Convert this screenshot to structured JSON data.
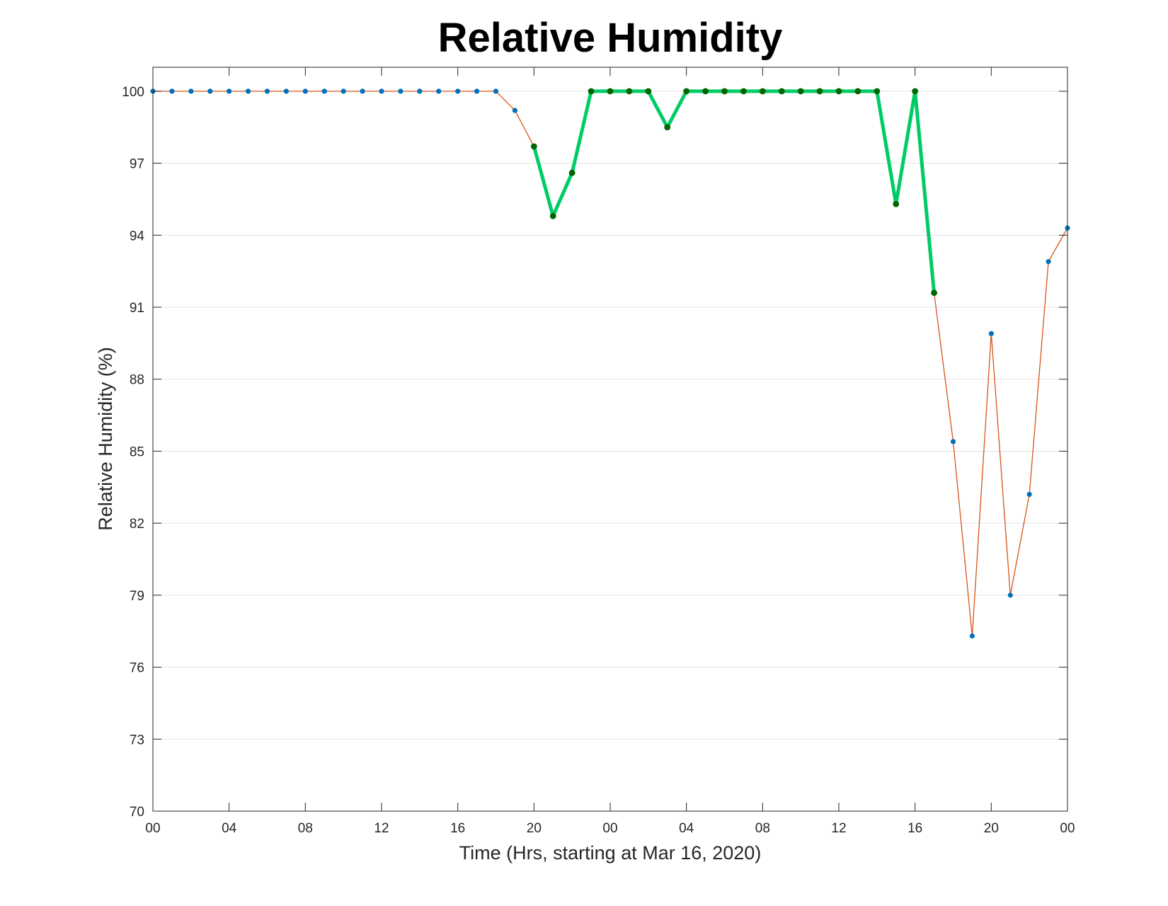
{
  "chart_data": {
    "type": "line",
    "title": "Relative Humidity",
    "xlabel": "Time (Hrs, starting at Mar 16, 2020)",
    "ylabel": "Relative Humidity (%)",
    "xlim": [
      0,
      48
    ],
    "ylim": [
      70,
      101
    ],
    "grid": "horizontal",
    "legend": "none",
    "x_ticks": [
      0,
      4,
      8,
      12,
      16,
      20,
      24,
      28,
      32,
      36,
      40,
      44,
      48
    ],
    "x_tick_labels": [
      "00",
      "04",
      "08",
      "12",
      "16",
      "20",
      "00",
      "04",
      "08",
      "12",
      "16",
      "20",
      "00"
    ],
    "y_ticks": [
      70,
      73,
      76,
      79,
      82,
      85,
      88,
      91,
      94,
      97,
      100
    ],
    "y_tick_labels": [
      "70",
      "73",
      "76",
      "79",
      "82",
      "85",
      "88",
      "91",
      "94",
      "97",
      "100"
    ],
    "series": [
      {
        "color": "#D95319",
        "marker_color": "#0072BD",
        "x": [
          0,
          1,
          2,
          3,
          4,
          5,
          6,
          7,
          8,
          9,
          10,
          11,
          12,
          13,
          14,
          15,
          16,
          17,
          18,
          19,
          20,
          21,
          22,
          23,
          24,
          25,
          26,
          27,
          28,
          29,
          30,
          31,
          32,
          33,
          34,
          35,
          36,
          37,
          38,
          39,
          40,
          41,
          42,
          43,
          44,
          45,
          46,
          47,
          48
        ],
        "values": [
          100,
          100,
          100,
          100,
          100,
          100,
          100,
          100,
          100,
          100,
          100,
          100,
          100,
          100,
          100,
          100,
          100,
          100,
          100,
          99.2,
          97.7,
          94.8,
          96.6,
          100,
          100,
          100,
          100,
          98.5,
          100,
          100,
          100,
          100,
          100,
          100,
          100,
          100,
          100,
          100,
          100,
          95.3,
          100,
          91.6,
          85.4,
          77.3,
          89.9,
          79.0,
          83.2,
          92.9,
          94.3
        ]
      },
      {
        "color": "#00CC66",
        "marker_color": "#006400",
        "x": [
          20,
          21,
          22,
          23,
          24,
          25,
          26,
          27,
          28,
          29,
          30,
          31,
          32,
          33,
          34,
          35,
          36,
          37,
          38,
          39,
          40,
          41
        ],
        "values": [
          97.7,
          94.8,
          96.6,
          100,
          100,
          100,
          100,
          98.5,
          100,
          100,
          100,
          100,
          100,
          100,
          100,
          100,
          100,
          100,
          100,
          95.3,
          100,
          91.6
        ]
      }
    ]
  }
}
